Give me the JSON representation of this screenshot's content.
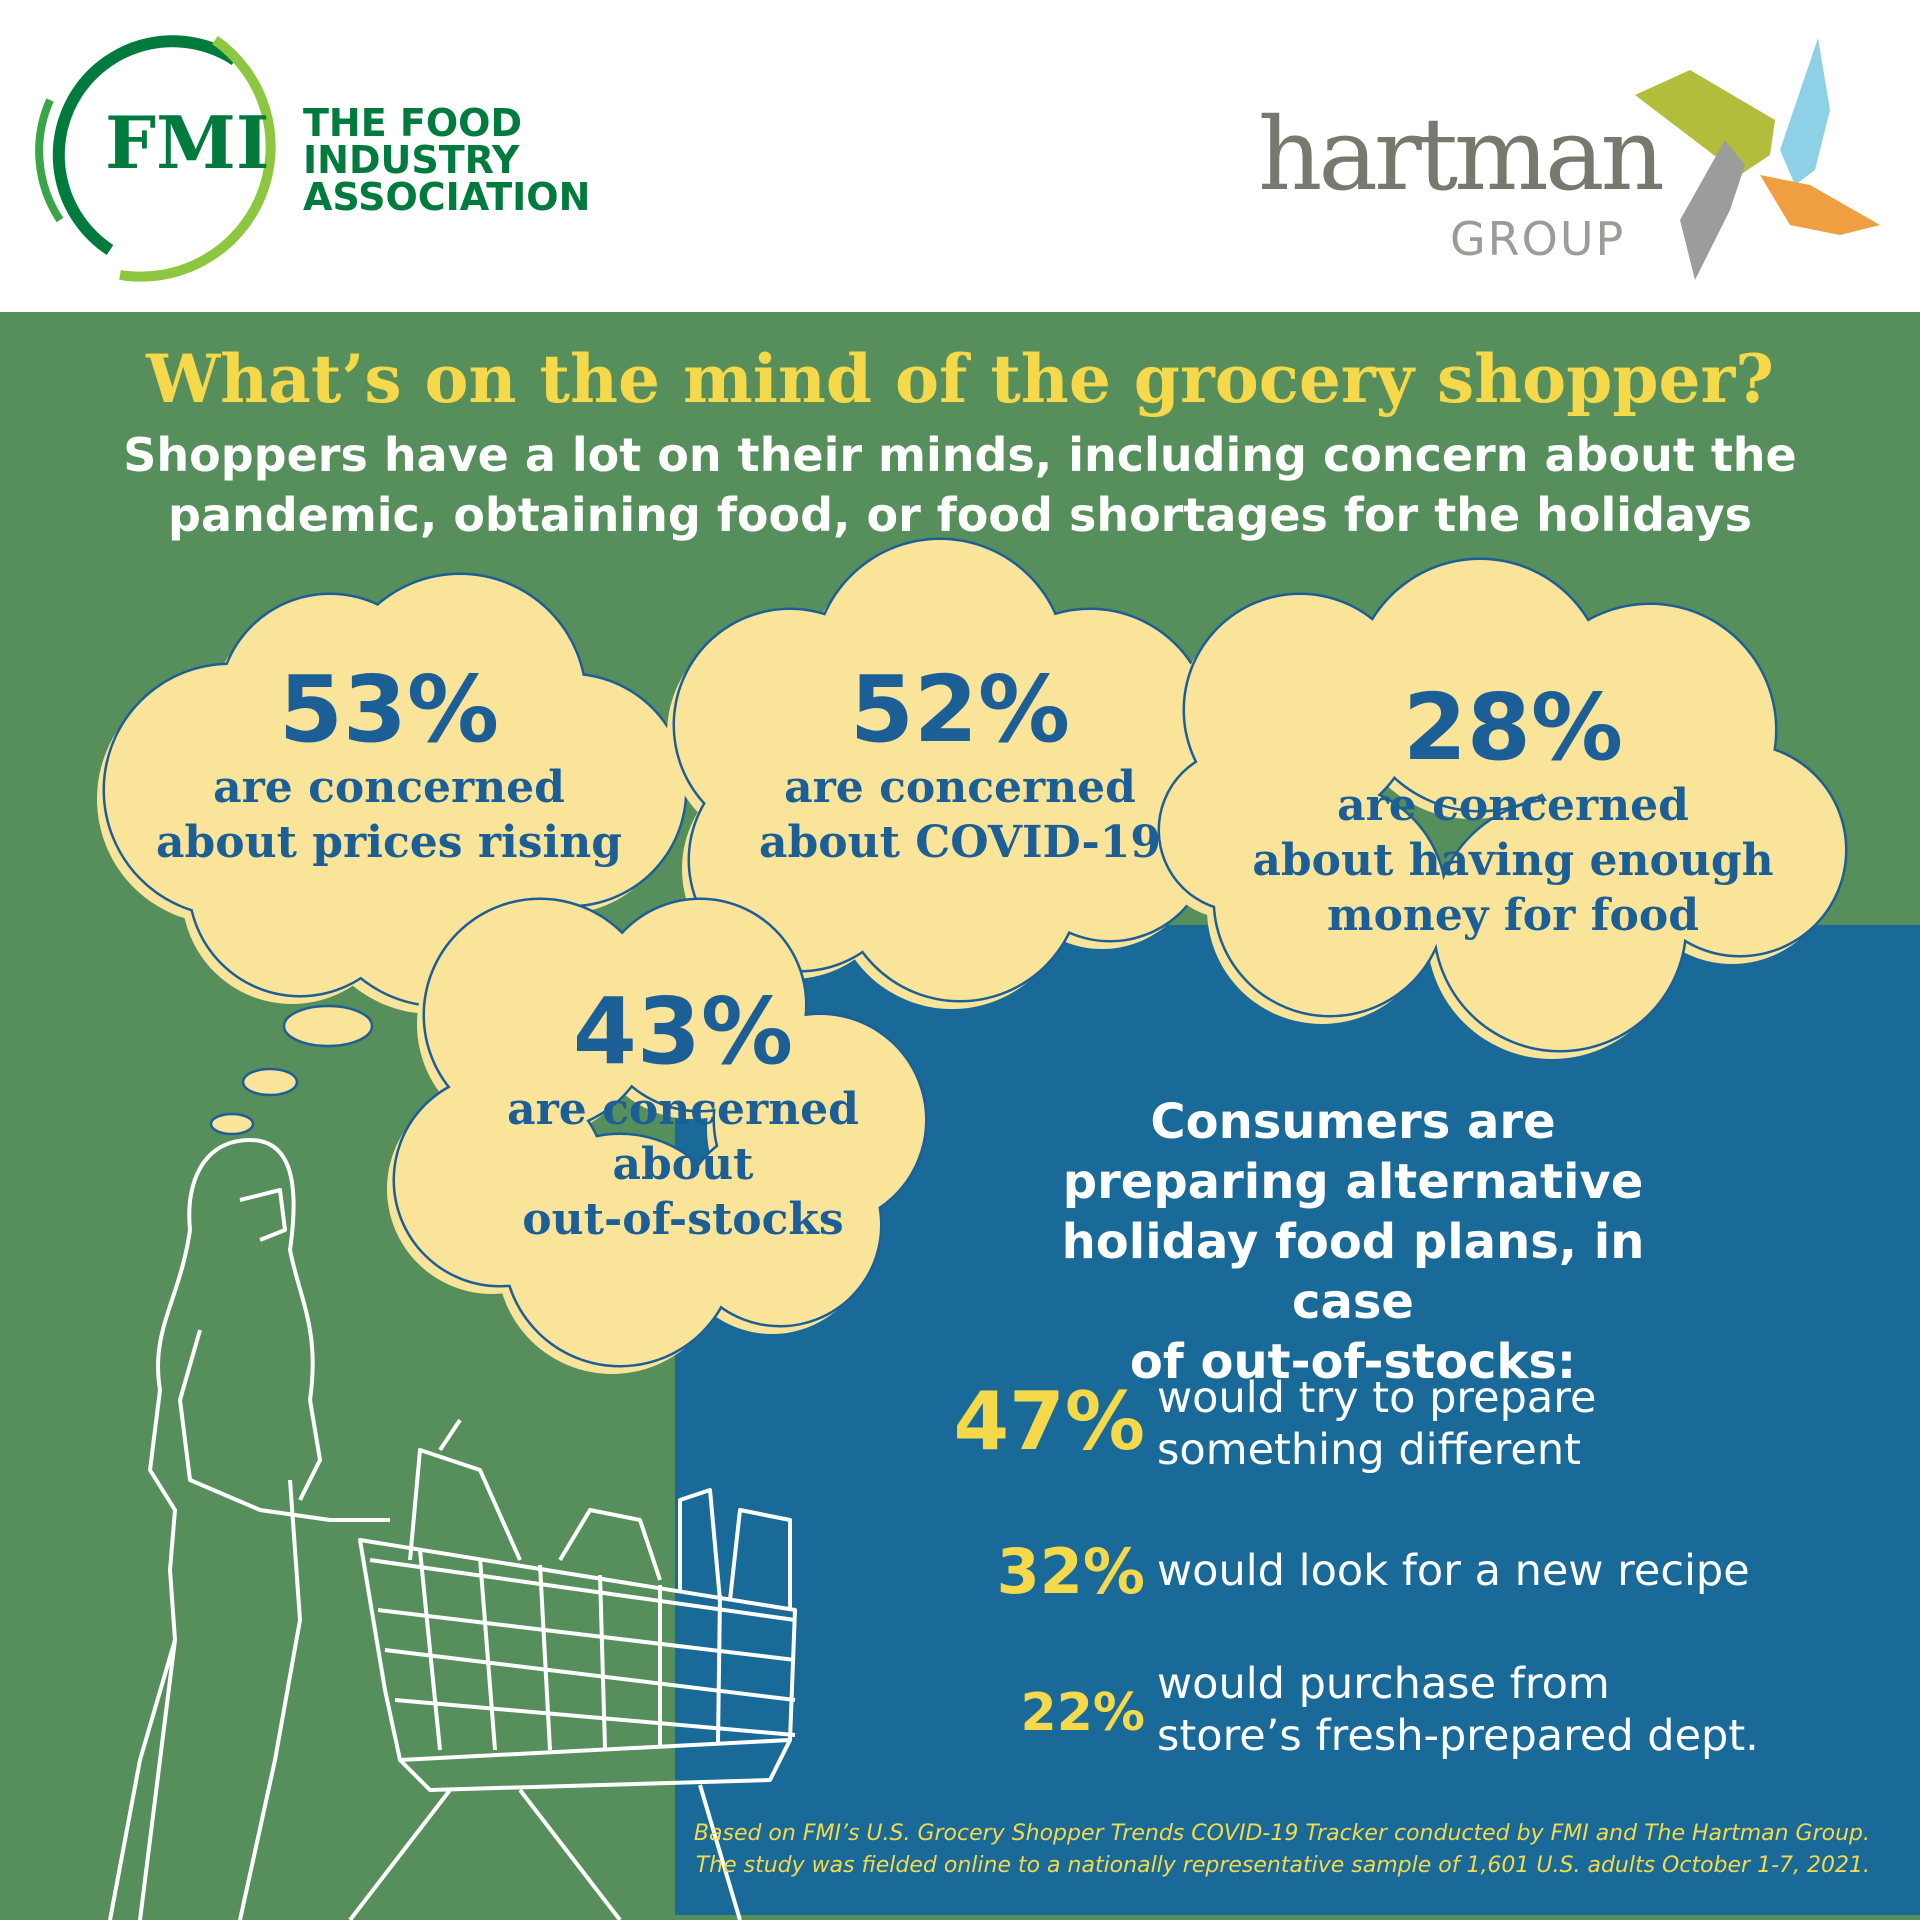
{
  "header": {
    "fmi_logo": {
      "mark": "FMI",
      "name_lines": [
        "THE FOOD",
        "INDUSTRY",
        "ASSOCIATION"
      ]
    },
    "hartman_logo": {
      "name": "hartman",
      "sub": "GROUP"
    }
  },
  "title": "What’s on the mind of the grocery shopper?",
  "subtitle": [
    "Shoppers have a lot on their minds, including concern about the",
    "pandemic, obtaining food, or food shortages for the holidays"
  ],
  "concerns": [
    {
      "percent": "53%",
      "lines": [
        "are concerned",
        "about prices rising"
      ]
    },
    {
      "percent": "52%",
      "lines": [
        "are concerned",
        "about COVID-19"
      ]
    },
    {
      "percent": "28%",
      "lines": [
        "are concerned",
        "about having enough",
        "money for food"
      ]
    },
    {
      "percent": "43%",
      "lines": [
        "are concerned",
        "about",
        "out-of-stocks"
      ]
    }
  ],
  "plans": {
    "heading": [
      "Consumers are",
      "preparing alternative",
      "holiday food plans, in case",
      "of out-of-stocks:"
    ],
    "items": [
      {
        "percent": "47%",
        "lines": [
          "would try to prepare",
          "something different"
        ]
      },
      {
        "percent": "32%",
        "lines": [
          "would look for a new recipe"
        ]
      },
      {
        "percent": "22%",
        "lines": [
          "would purchase from",
          "store’s fresh-prepared dept."
        ]
      }
    ]
  },
  "footnote": [
    "Based on FMI’s U.S. Grocery Shopper Trends COVID-19 Tracker conducted by FMI and The Hartman Group.",
    "The study was fielded online to a nationally representative sample of 1,601 U.S. adults October 1-7, 2021."
  ],
  "colors": {
    "green": "#578f5c",
    "blue": "#1a6a99",
    "yellow": "#f6d94a",
    "cloud": "#f9e49a",
    "cloud_text": "#1c5f96",
    "fmi_green": "#007a3d"
  }
}
